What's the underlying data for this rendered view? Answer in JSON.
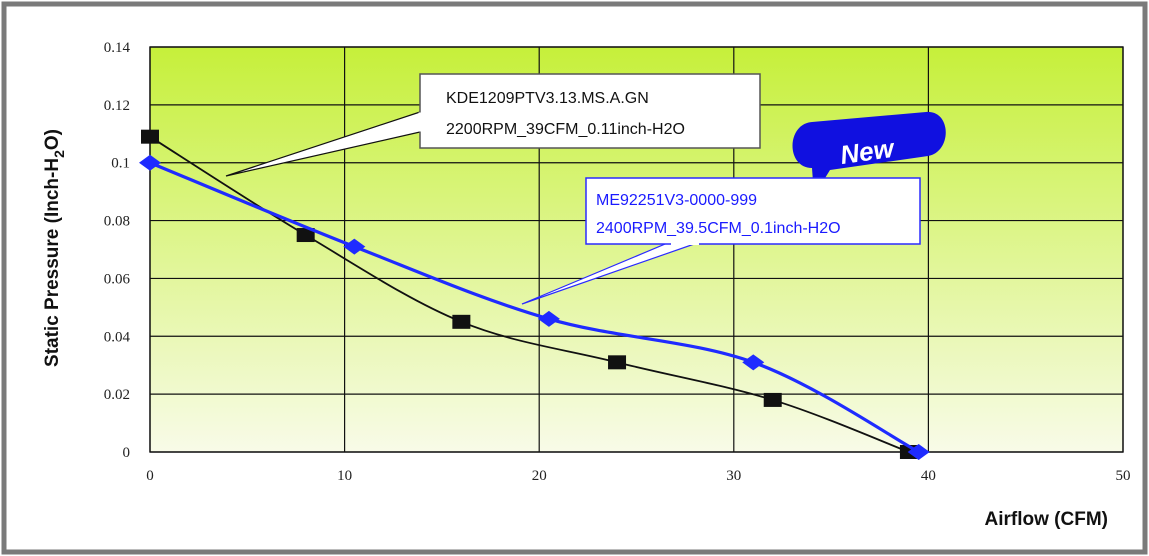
{
  "colors": {
    "frame": "#7a7a7a",
    "plot_top": "#c6f03a",
    "plot_bottom": "#f8fbe8",
    "grid": "#111111",
    "series_black": "#111111",
    "series_blue": "#1f2bff",
    "badge": "#1010e0"
  },
  "chart_data": {
    "type": "line",
    "xlabel": "Airflow (CFM)",
    "ylabel": {
      "main": "Static Pressure (Inch-H",
      "sub": "2",
      "tail": "O)"
    },
    "xlim": [
      0,
      50
    ],
    "ylim": [
      0,
      0.14
    ],
    "x_ticks": [
      "0",
      "10",
      "20",
      "30",
      "40",
      "50"
    ],
    "y_ticks": [
      "0",
      "0.02",
      "0.04",
      "0.06",
      "0.08",
      "0.1",
      "0.12",
      "0.14"
    ],
    "grid": true,
    "series": [
      {
        "name": "KDE1209PTV3.13.MS.A.GN",
        "color": "#111111",
        "marker": "square",
        "points": [
          [
            0,
            0.109
          ],
          [
            8,
            0.075
          ],
          [
            16,
            0.045
          ],
          [
            24,
            0.031
          ],
          [
            32,
            0.018
          ],
          [
            39,
            0
          ]
        ]
      },
      {
        "name": "ME92251V3-0000-999",
        "color": "#1f2bff",
        "marker": "diamond",
        "points": [
          [
            0,
            0.1
          ],
          [
            10.5,
            0.071
          ],
          [
            20.5,
            0.046
          ],
          [
            31,
            0.031
          ],
          [
            39.5,
            0
          ]
        ]
      }
    ],
    "annotations": {
      "black": {
        "line1": "KDE1209PTV3.13.MS.A.GN",
        "line2": "2200RPM_39CFM_0.11inch-H2O"
      },
      "blue": {
        "line1": "ME92251V3-0000-999",
        "line2": "2400RPM_39.5CFM_0.1inch-H2O"
      },
      "badge": "New"
    }
  }
}
